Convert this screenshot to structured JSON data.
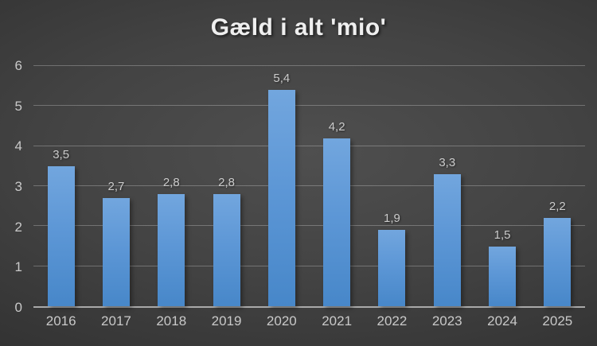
{
  "chart_data": {
    "type": "bar",
    "title": "Gæld i alt 'mio'",
    "categories": [
      "2016",
      "2017",
      "2018",
      "2019",
      "2020",
      "2021",
      "2022",
      "2023",
      "2024",
      "2025"
    ],
    "values": [
      3.5,
      2.7,
      2.8,
      2.8,
      5.4,
      4.2,
      1.9,
      3.3,
      1.5,
      2.2
    ],
    "value_labels": [
      "3,5",
      "2,7",
      "2,8",
      "2,8",
      "5,4",
      "4,2",
      "1,9",
      "3,3",
      "1,5",
      "2,2"
    ],
    "xlabel": "",
    "ylabel": "",
    "ylim": [
      0,
      6
    ],
    "yticks": [
      0,
      1,
      2,
      3,
      4,
      5,
      6
    ],
    "grid": true,
    "legend_position": "none",
    "decimal_separator": ",",
    "colors": {
      "bar_top": "#72A6DE",
      "bar_bottom": "#4787C9",
      "background_center": "#4F4F4F",
      "background_edge": "#262626",
      "gridline": "#6E6E6E",
      "axis_line": "#A9A9A9",
      "tick_label": "#C9C9C9",
      "value_label": "#CCCCCC",
      "title": "#EFEFEF"
    }
  }
}
